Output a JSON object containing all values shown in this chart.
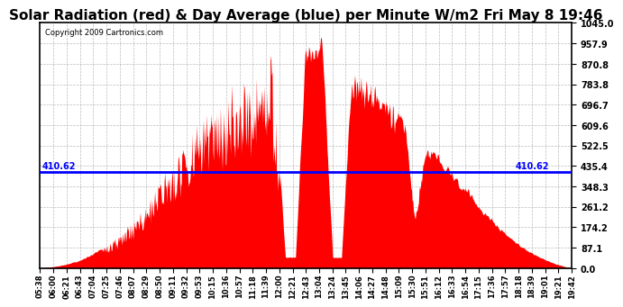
{
  "title": "Solar Radiation (red) & Day Average (blue) per Minute W/m2 Fri May 8 19:46",
  "copyright": "Copyright 2009 Cartronics.com",
  "ymax": 1045.0,
  "ymin": 0.0,
  "yticks": [
    0.0,
    87.1,
    174.2,
    261.2,
    348.3,
    435.4,
    522.5,
    609.6,
    696.7,
    783.8,
    870.8,
    957.9,
    1045.0
  ],
  "avg_line": 410.62,
  "avg_label": "410.62",
  "x_labels": [
    "05:38",
    "06:00",
    "06:21",
    "06:43",
    "07:04",
    "07:25",
    "07:46",
    "08:07",
    "08:29",
    "08:50",
    "09:11",
    "09:32",
    "09:53",
    "10:15",
    "10:36",
    "10:57",
    "11:18",
    "11:39",
    "12:00",
    "12:21",
    "12:43",
    "13:04",
    "13:24",
    "13:45",
    "14:06",
    "14:27",
    "14:48",
    "15:09",
    "15:30",
    "15:51",
    "16:12",
    "16:33",
    "16:54",
    "17:15",
    "17:36",
    "17:57",
    "18:18",
    "18:39",
    "19:01",
    "19:21",
    "19:42"
  ],
  "fill_color": "#FF0000",
  "line_color": "#0000FF",
  "background_color": "#FFFFFF",
  "grid_color": "#AAAAAA",
  "title_fontsize": 11,
  "tick_fontsize": 7
}
